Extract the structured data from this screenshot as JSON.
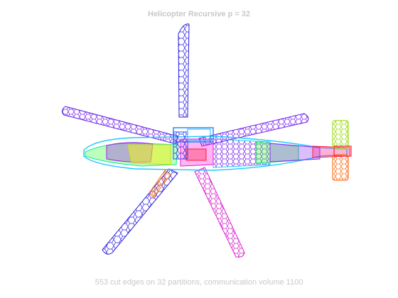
{
  "figure": {
    "title": "Helicopter Recursive p = 32",
    "caption": "553 cut edges on 32 partitions, communication volume 1100"
  },
  "colors": {
    "background": "#ffffff",
    "text": "#c8c8c8",
    "partition_palette": [
      "#2020d0",
      "#4a1ee0",
      "#7a1ef0",
      "#a020f0",
      "#c81ee6",
      "#e01ec8",
      "#ff2090",
      "#ff2040",
      "#ff5a1e",
      "#ff8c1e",
      "#ffc81e",
      "#f0f01e",
      "#c8ff1e",
      "#8cff1e",
      "#3cff3c",
      "#1eff8c",
      "#1effc8",
      "#1ee6ff",
      "#1eb4ff",
      "#1e82ff",
      "#1e50ff",
      "#3c3cff",
      "#6432ff",
      "#8c28ff",
      "#b428ff",
      "#dc28ff",
      "#ff28dc",
      "#ff28a0",
      "#ff3c3c",
      "#ff7828",
      "#e6b41e",
      "#a0dc1e"
    ]
  }
}
